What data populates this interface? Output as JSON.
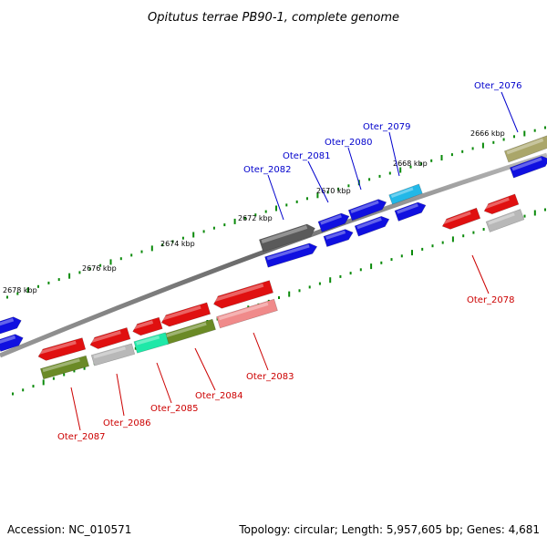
{
  "title": "Opitutus terrae PB90-1, complete genome",
  "footer": {
    "accession": "Accession: NC_010571",
    "info": "Topology: circular; Length: 5,957,605 bp; Genes: 4,681"
  },
  "scale_labels": [
    "2666 kbp",
    "2668 kbp",
    "2670 kbp",
    "2672 kbp",
    "2674 kbp",
    "2676 kbp",
    "2678 kbp"
  ],
  "gene_labels": {
    "forward": [
      "Oter_2076",
      "Oter_2079",
      "Oter_2080",
      "Oter_2081",
      "Oter_2082"
    ],
    "reverse": [
      "Oter_2078",
      "Oter_2083",
      "Oter_2084",
      "Oter_2085",
      "Oter_2086",
      "Oter_2087"
    ]
  },
  "colors": {
    "forward_label": "#0000cc",
    "reverse_label": "#cc0000",
    "blue": "#1010e0",
    "red": "#e01010",
    "gray_dark": "#5a5a5a",
    "gray_light": "#b8b8b8",
    "olive": "#6b8a26",
    "khaki": "#aaa66a",
    "cyan": "#22b8e8",
    "teal": "#1fe8a8",
    "pink": "#f08a8a",
    "backbone": "#7a7a7a",
    "tick": "#0a8a0a"
  }
}
